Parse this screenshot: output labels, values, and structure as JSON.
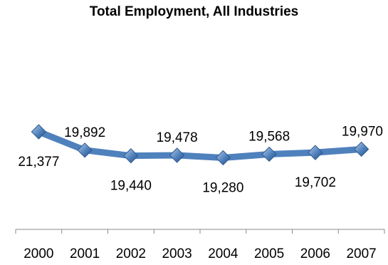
{
  "chart_data": {
    "type": "line",
    "title": "Total Employment, All Industries",
    "categories": [
      "2000",
      "2001",
      "2002",
      "2003",
      "2004",
      "2005",
      "2006",
      "2007"
    ],
    "values": [
      21377,
      19892,
      19440,
      19478,
      19280,
      19568,
      19702,
      19970
    ],
    "data_labels": [
      "21,377",
      "19,892",
      "19,440",
      "19,478",
      "19,280",
      "19,568",
      "19,702",
      "19,970"
    ],
    "ylim": [
      13500,
      30000
    ],
    "grid": false,
    "legend": "none",
    "line_color": "#4f81bd",
    "marker_color": "#4f81bd",
    "marker": "diamond"
  }
}
